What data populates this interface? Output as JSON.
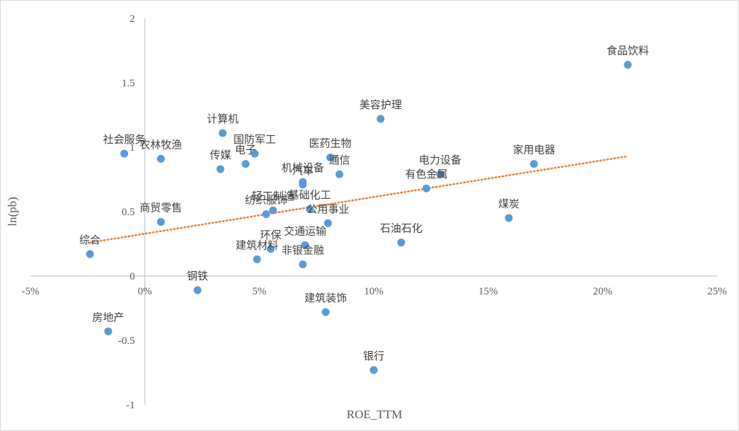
{
  "chart_data": {
    "type": "scatter",
    "title": "",
    "xlabel": "ROE_TTM",
    "ylabel": "ln(pb)",
    "xlim": [
      -5,
      25
    ],
    "ylim": [
      -1,
      2
    ],
    "x_ticks": [
      -5,
      0,
      5,
      10,
      15,
      20,
      25
    ],
    "x_tick_labels": [
      "-5%",
      "0%",
      "5%",
      "10%",
      "15%",
      "20%",
      "25%"
    ],
    "y_ticks": [
      -1,
      -0.5,
      0,
      0.5,
      1,
      1.5,
      2
    ],
    "y_tick_labels": [
      "-1",
      "-0.5",
      "0",
      "0.5",
      "1",
      "1.5",
      "2"
    ],
    "grid": false,
    "legend": "none",
    "point_color": "#5b9bd5",
    "trendline": {
      "type": "linear",
      "style": "dotted",
      "color": "#ed7d31",
      "x": [
        -2.4,
        21.1
      ],
      "y": [
        0.26,
        0.93
      ]
    },
    "points": [
      {
        "label": "食品饮料",
        "x": 21.1,
        "y": 1.64
      },
      {
        "label": "美容护理",
        "x": 10.3,
        "y": 1.22
      },
      {
        "label": "计算机",
        "x": 3.4,
        "y": 1.11
      },
      {
        "label": "社会服务",
        "x": -0.9,
        "y": 0.95
      },
      {
        "label": "农林牧渔",
        "x": 0.7,
        "y": 0.91
      },
      {
        "label": "国防军工",
        "x": 4.8,
        "y": 0.95
      },
      {
        "label": "电子",
        "x": 4.4,
        "y": 0.87
      },
      {
        "label": "传媒",
        "x": 3.3,
        "y": 0.83
      },
      {
        "label": "医药生物",
        "x": 8.1,
        "y": 0.92
      },
      {
        "label": "通信",
        "x": 8.5,
        "y": 0.79
      },
      {
        "label": "机械设备",
        "x": 6.9,
        "y": 0.73
      },
      {
        "label": "汽车",
        "x": 6.9,
        "y": 0.71
      },
      {
        "label": "家用电器",
        "x": 17.0,
        "y": 0.87
      },
      {
        "label": "电力设备",
        "x": 12.9,
        "y": 0.79
      },
      {
        "label": "有色金属",
        "x": 12.3,
        "y": 0.68
      },
      {
        "label": "轻工制造",
        "x": 5.6,
        "y": 0.51
      },
      {
        "label": "基础化工",
        "x": 7.2,
        "y": 0.52
      },
      {
        "label": "纺织服饰",
        "x": 5.3,
        "y": 0.48
      },
      {
        "label": "公用事业",
        "x": 8.0,
        "y": 0.41
      },
      {
        "label": "商贸零售",
        "x": 0.7,
        "y": 0.42
      },
      {
        "label": "煤炭",
        "x": 15.9,
        "y": 0.45
      },
      {
        "label": "石油石化",
        "x": 11.2,
        "y": 0.26
      },
      {
        "label": "交通运输",
        "x": 7.0,
        "y": 0.24
      },
      {
        "label": "环保",
        "x": 5.5,
        "y": 0.21
      },
      {
        "label": "建筑材料",
        "x": 4.9,
        "y": 0.13
      },
      {
        "label": "非银金融",
        "x": 6.9,
        "y": 0.09
      },
      {
        "label": "综合",
        "x": -2.4,
        "y": 0.17
      },
      {
        "label": "钢铁",
        "x": 2.3,
        "y": -0.11
      },
      {
        "label": "建筑装饰",
        "x": 7.9,
        "y": -0.28
      },
      {
        "label": "房地产",
        "x": -1.6,
        "y": -0.43
      },
      {
        "label": "银行",
        "x": 10.0,
        "y": -0.73
      }
    ]
  }
}
